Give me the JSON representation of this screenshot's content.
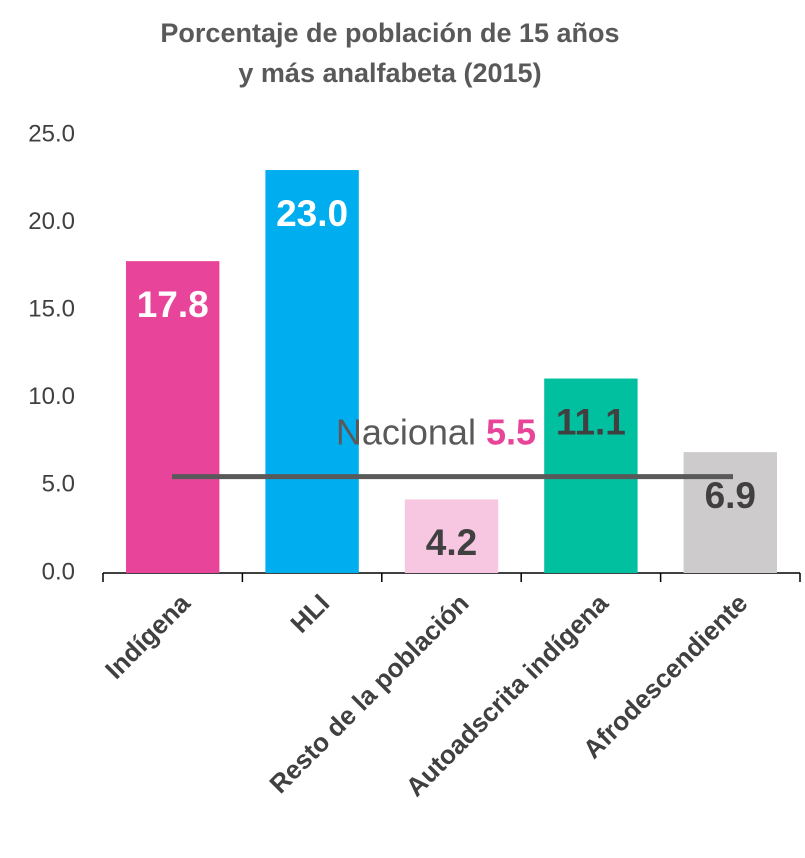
{
  "chart_data": {
    "type": "bar",
    "title": [
      "Porcentaje de población de 15 años",
      "y más analfabeta (2015)"
    ],
    "categories": [
      "Indígena",
      "HLI",
      "Resto de la población",
      "Autoadscrita indígena",
      "Afrodescendiente"
    ],
    "values": [
      17.8,
      23.0,
      4.2,
      11.1,
      6.9
    ],
    "value_labels": [
      "17.8",
      "23.0",
      "4.2",
      "11.1",
      "6.9"
    ],
    "colors": [
      "#e8449a",
      "#00aeef",
      "#f7c6e0",
      "#00c0a0",
      "#cdcbcb"
    ],
    "label_colors": [
      "#ffffff",
      "#ffffff",
      "#404040",
      "#404040",
      "#404040"
    ],
    "ylim": [
      0,
      25
    ],
    "yticks": [
      {
        "value": 0,
        "label": "0.0"
      },
      {
        "value": 5,
        "label": "5.0"
      },
      {
        "value": 10,
        "label": "10.0"
      },
      {
        "value": 15,
        "label": "15.0"
      },
      {
        "value": 20,
        "label": "20.0"
      },
      {
        "value": 25,
        "label": "25.0"
      }
    ],
    "grid": false,
    "reference_line": {
      "label": "Nacional",
      "value": 5.5,
      "color": "#595959",
      "value_color": "#e8449a"
    }
  }
}
